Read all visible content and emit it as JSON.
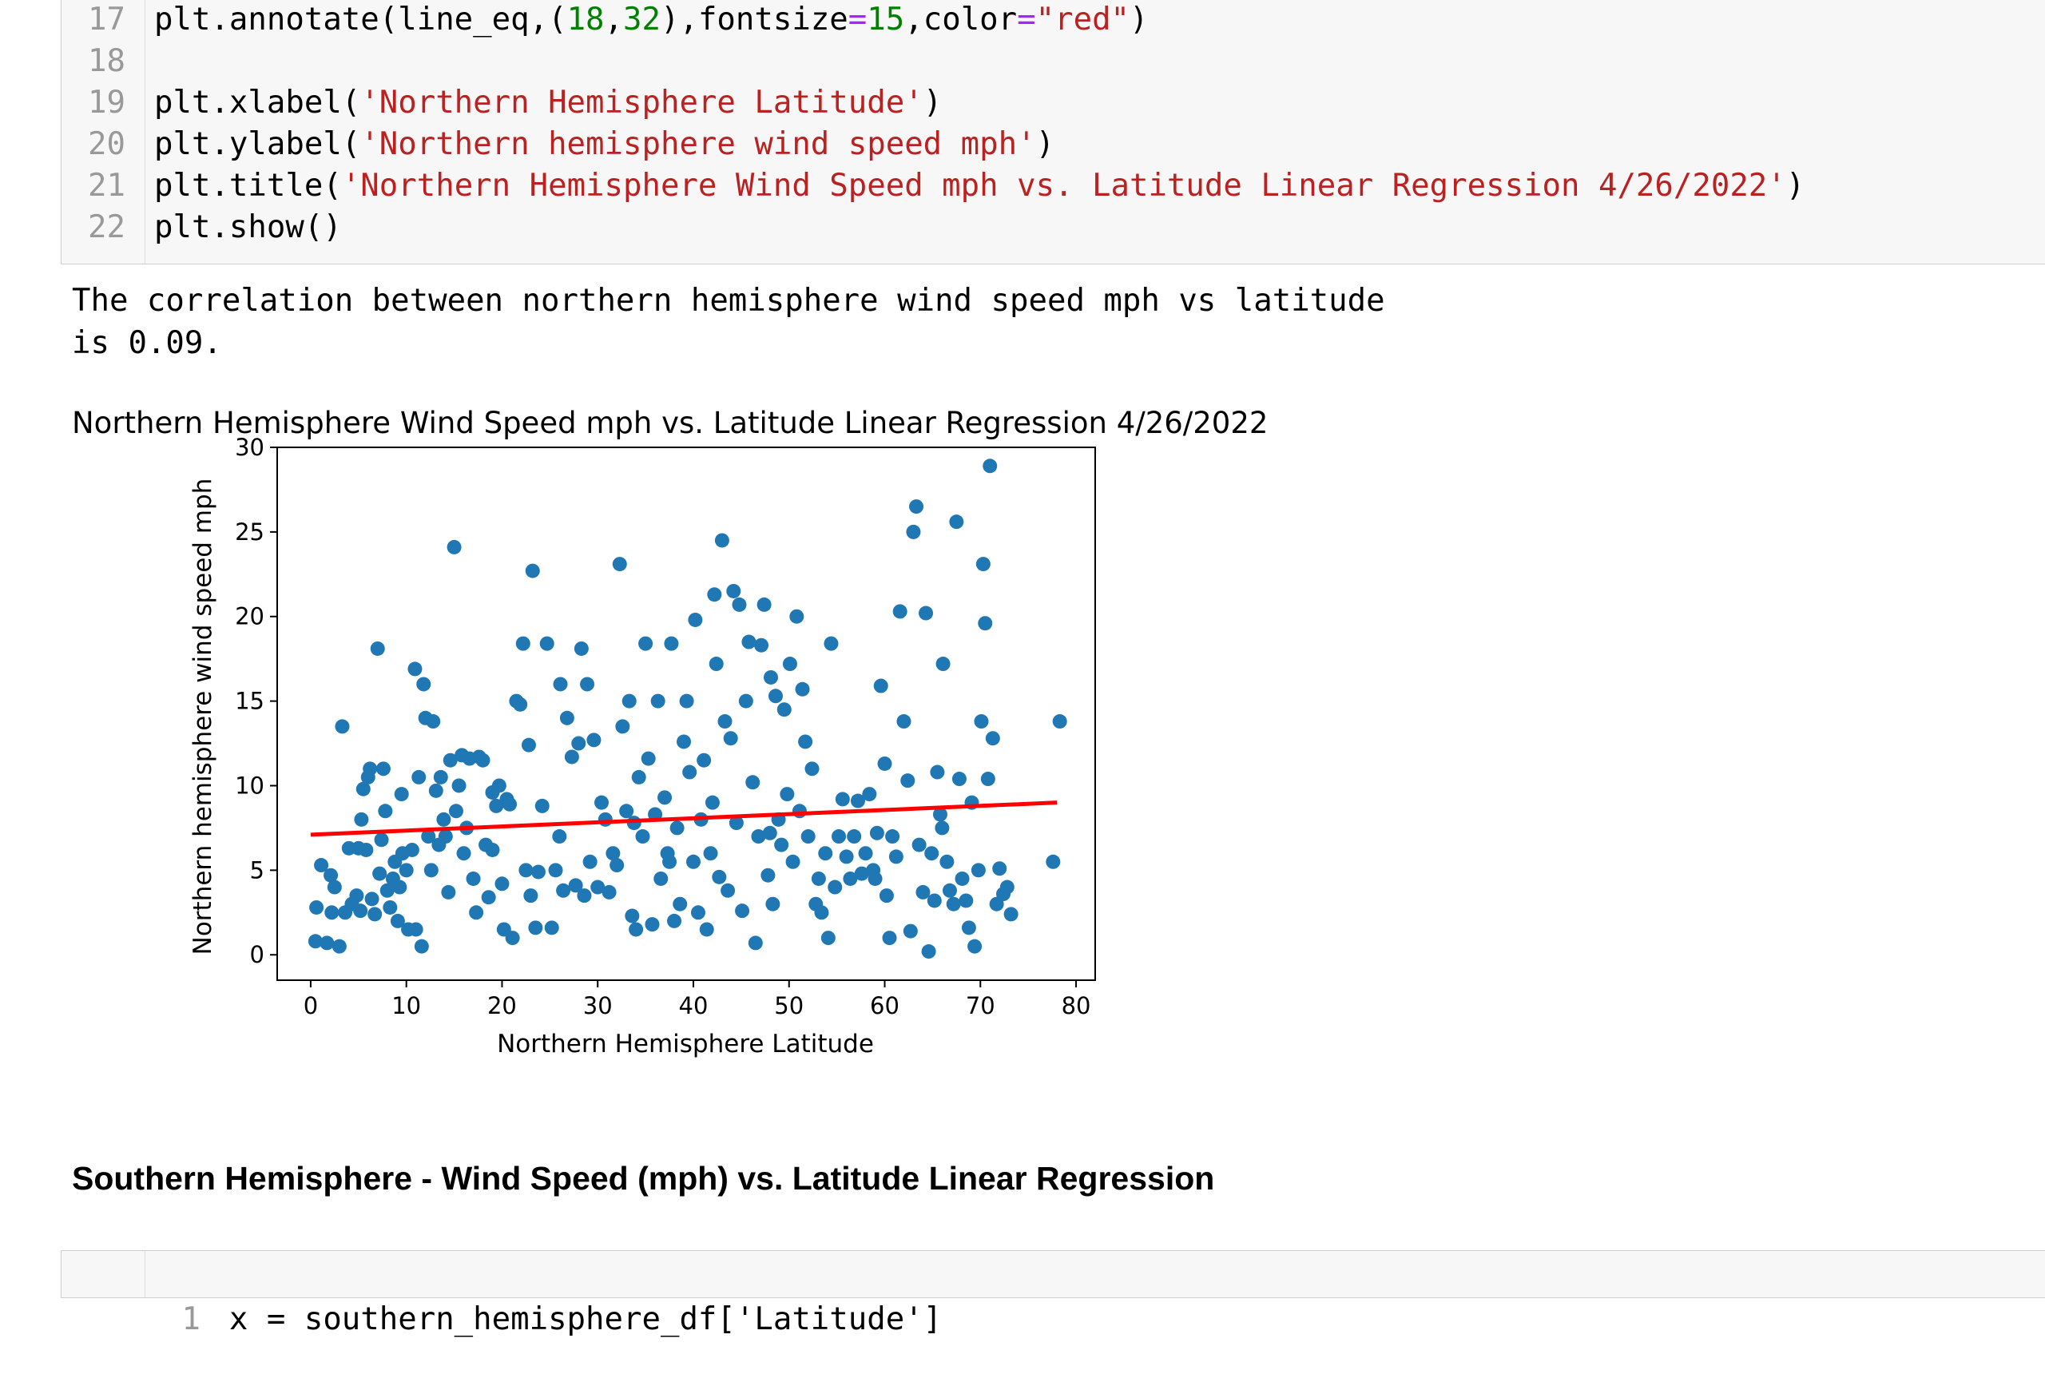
{
  "code_cell": {
    "lines": [
      {
        "num": "17",
        "parts": [
          {
            "t": "plt.annotate(line_eq,(",
            "c": "code"
          },
          {
            "t": "18",
            "c": "n"
          },
          {
            "t": ",",
            "c": "code"
          },
          {
            "t": "32",
            "c": "n"
          },
          {
            "t": "),fontsize",
            "c": "code"
          },
          {
            "t": "=",
            "c": "o"
          },
          {
            "t": "15",
            "c": "n"
          },
          {
            "t": ",color",
            "c": "code"
          },
          {
            "t": "=",
            "c": "o"
          },
          {
            "t": "\"red\"",
            "c": "s"
          },
          {
            "t": ")",
            "c": "code"
          }
        ]
      },
      {
        "num": "18",
        "parts": []
      },
      {
        "num": "19",
        "parts": [
          {
            "t": "plt.xlabel(",
            "c": "code"
          },
          {
            "t": "'Northern Hemisphere Latitude'",
            "c": "s"
          },
          {
            "t": ")",
            "c": "code"
          }
        ]
      },
      {
        "num": "20",
        "parts": [
          {
            "t": "plt.ylabel(",
            "c": "code"
          },
          {
            "t": "'Northern hemisphere wind speed mph'",
            "c": "s"
          },
          {
            "t": ")",
            "c": "code"
          }
        ]
      },
      {
        "num": "21",
        "parts": [
          {
            "t": "plt.title(",
            "c": "code"
          },
          {
            "t": "'Northern Hemisphere Wind Speed mph vs. Latitude Linear Regression 4/26/2022'",
            "c": "s"
          },
          {
            "t": ")",
            "c": "code"
          }
        ]
      },
      {
        "num": "22",
        "parts": [
          {
            "t": "plt.show()",
            "c": "code"
          }
        ]
      }
    ]
  },
  "output": {
    "text": "The correlation between northern hemisphere wind speed mph vs latitude\nis 0.09."
  },
  "markdown": {
    "heading": "Southern Hemisphere - Wind Speed (mph) vs. Latitude Linear Regression"
  },
  "next_cell": {
    "line_num": "1",
    "code": "x = southern_hemisphere_df['Latitude']"
  },
  "chart_data": {
    "type": "scatter",
    "title": "Northern Hemisphere Wind Speed mph vs. Latitude Linear Regression 4/26/2022",
    "xlabel": "Northern Hemisphere Latitude",
    "ylabel": "Northern hemisphere wind speed mph",
    "xlim": [
      -3.5,
      82
    ],
    "ylim": [
      -1.5,
      30
    ],
    "xticks": [
      0,
      10,
      20,
      30,
      40,
      50,
      60,
      70,
      80
    ],
    "yticks": [
      0,
      5,
      10,
      15,
      20,
      25,
      30
    ],
    "point_color": "#1f77b4",
    "line_color": "#ff0000",
    "regression": {
      "x": [
        0,
        78
      ],
      "y": [
        7.1,
        9.0
      ]
    },
    "points": [
      [
        0.5,
        0.8
      ],
      [
        0.6,
        2.8
      ],
      [
        1.1,
        5.3
      ],
      [
        1.7,
        0.7
      ],
      [
        2.1,
        4.7
      ],
      [
        2.5,
        4.0
      ],
      [
        3.0,
        0.5
      ],
      [
        3.3,
        13.5
      ],
      [
        3.6,
        2.5
      ],
      [
        4.0,
        6.3
      ],
      [
        4.3,
        3.0
      ],
      [
        4.8,
        3.5
      ],
      [
        5.2,
        2.6
      ],
      [
        5.3,
        8.0
      ],
      [
        5.5,
        9.8
      ],
      [
        5.8,
        6.2
      ],
      [
        6.0,
        10.5
      ],
      [
        6.2,
        11.0
      ],
      [
        6.4,
        3.3
      ],
      [
        6.7,
        2.4
      ],
      [
        7.0,
        18.1
      ],
      [
        7.2,
        4.8
      ],
      [
        7.4,
        6.8
      ],
      [
        7.6,
        11.0
      ],
      [
        7.8,
        8.5
      ],
      [
        8.0,
        3.8
      ],
      [
        8.3,
        2.8
      ],
      [
        8.6,
        4.5
      ],
      [
        8.8,
        5.5
      ],
      [
        9.1,
        2.0
      ],
      [
        9.3,
        4.0
      ],
      [
        9.6,
        6.0
      ],
      [
        10.0,
        5.0
      ],
      [
        10.2,
        1.5
      ],
      [
        10.6,
        6.2
      ],
      [
        10.9,
        16.9
      ],
      [
        11.0,
        1.5
      ],
      [
        11.3,
        10.5
      ],
      [
        11.6,
        0.5
      ],
      [
        11.8,
        16.0
      ],
      [
        12.0,
        14.0
      ],
      [
        12.3,
        7.0
      ],
      [
        12.6,
        5.0
      ],
      [
        12.8,
        13.8
      ],
      [
        13.1,
        9.7
      ],
      [
        13.4,
        6.5
      ],
      [
        13.6,
        10.5
      ],
      [
        13.9,
        8.0
      ],
      [
        14.1,
        7.0
      ],
      [
        14.4,
        3.7
      ],
      [
        14.6,
        11.5
      ],
      [
        15.0,
        24.1
      ],
      [
        15.2,
        8.5
      ],
      [
        15.5,
        10.0
      ],
      [
        15.8,
        11.8
      ],
      [
        16.0,
        6.0
      ],
      [
        16.3,
        7.5
      ],
      [
        16.6,
        11.6
      ],
      [
        17.0,
        4.5
      ],
      [
        17.3,
        2.5
      ],
      [
        17.6,
        11.7
      ],
      [
        18.0,
        11.5
      ],
      [
        18.3,
        6.5
      ],
      [
        18.6,
        3.4
      ],
      [
        19.0,
        9.6
      ],
      [
        19.4,
        8.8
      ],
      [
        19.7,
        10.0
      ],
      [
        20.0,
        4.2
      ],
      [
        20.2,
        1.5
      ],
      [
        20.5,
        9.2
      ],
      [
        20.8,
        8.9
      ],
      [
        21.1,
        1.0
      ],
      [
        21.5,
        15.0
      ],
      [
        21.9,
        14.8
      ],
      [
        22.2,
        18.4
      ],
      [
        22.5,
        5.0
      ],
      [
        22.8,
        12.4
      ],
      [
        23.0,
        3.5
      ],
      [
        23.2,
        22.7
      ],
      [
        23.5,
        1.6
      ],
      [
        23.8,
        4.9
      ],
      [
        24.2,
        8.8
      ],
      [
        24.7,
        18.4
      ],
      [
        25.2,
        1.6
      ],
      [
        25.6,
        5.0
      ],
      [
        26.1,
        16.0
      ],
      [
        26.4,
        3.8
      ],
      [
        26.8,
        14.0
      ],
      [
        27.3,
        11.7
      ],
      [
        27.7,
        4.1
      ],
      [
        28.0,
        12.5
      ],
      [
        28.3,
        18.1
      ],
      [
        28.6,
        3.5
      ],
      [
        28.9,
        16.0
      ],
      [
        29.2,
        5.5
      ],
      [
        29.6,
        12.7
      ],
      [
        30.0,
        4.0
      ],
      [
        30.4,
        9.0
      ],
      [
        30.8,
        8.0
      ],
      [
        31.2,
        3.7
      ],
      [
        31.6,
        6.0
      ],
      [
        32.0,
        5.3
      ],
      [
        32.3,
        23.1
      ],
      [
        32.6,
        13.5
      ],
      [
        33.0,
        8.5
      ],
      [
        33.3,
        15.0
      ],
      [
        33.6,
        2.3
      ],
      [
        34.0,
        1.5
      ],
      [
        34.3,
        10.5
      ],
      [
        34.7,
        7.0
      ],
      [
        35.0,
        18.4
      ],
      [
        35.3,
        11.6
      ],
      [
        35.7,
        1.8
      ],
      [
        36.0,
        8.3
      ],
      [
        36.3,
        15.0
      ],
      [
        36.6,
        4.5
      ],
      [
        37.0,
        9.3
      ],
      [
        37.3,
        6.0
      ],
      [
        37.7,
        18.4
      ],
      [
        38.0,
        2.0
      ],
      [
        38.3,
        7.5
      ],
      [
        38.6,
        3.0
      ],
      [
        39.0,
        12.6
      ],
      [
        39.3,
        15.0
      ],
      [
        39.6,
        10.8
      ],
      [
        40.0,
        5.5
      ],
      [
        40.2,
        19.8
      ],
      [
        40.5,
        2.5
      ],
      [
        40.8,
        8.0
      ],
      [
        41.1,
        11.5
      ],
      [
        41.4,
        1.5
      ],
      [
        41.8,
        6.0
      ],
      [
        42.2,
        21.3
      ],
      [
        42.4,
        17.2
      ],
      [
        42.7,
        4.6
      ],
      [
        43.0,
        24.5
      ],
      [
        43.3,
        13.8
      ],
      [
        43.6,
        3.8
      ],
      [
        43.9,
        12.8
      ],
      [
        44.2,
        21.5
      ],
      [
        44.5,
        7.8
      ],
      [
        44.8,
        20.7
      ],
      [
        45.1,
        2.6
      ],
      [
        45.5,
        15.0
      ],
      [
        45.8,
        18.5
      ],
      [
        46.2,
        10.2
      ],
      [
        46.5,
        0.7
      ],
      [
        46.8,
        7.0
      ],
      [
        47.1,
        18.3
      ],
      [
        47.4,
        20.7
      ],
      [
        47.8,
        4.7
      ],
      [
        48.1,
        16.4
      ],
      [
        48.3,
        3.0
      ],
      [
        48.6,
        15.3
      ],
      [
        48.9,
        8.0
      ],
      [
        49.2,
        6.5
      ],
      [
        49.5,
        14.5
      ],
      [
        49.8,
        9.5
      ],
      [
        50.1,
        17.2
      ],
      [
        50.4,
        5.5
      ],
      [
        50.8,
        20.0
      ],
      [
        51.1,
        8.5
      ],
      [
        51.4,
        15.7
      ],
      [
        51.7,
        12.6
      ],
      [
        52.0,
        7.0
      ],
      [
        52.4,
        11.0
      ],
      [
        52.8,
        3.0
      ],
      [
        53.1,
        4.5
      ],
      [
        53.4,
        2.5
      ],
      [
        53.8,
        6.0
      ],
      [
        54.1,
        1.0
      ],
      [
        54.4,
        18.4
      ],
      [
        54.8,
        4.0
      ],
      [
        55.2,
        7.0
      ],
      [
        55.6,
        9.2
      ],
      [
        56.0,
        5.8
      ],
      [
        56.4,
        4.5
      ],
      [
        56.8,
        7.0
      ],
      [
        57.2,
        9.1
      ],
      [
        57.6,
        4.8
      ],
      [
        58.0,
        6.0
      ],
      [
        58.4,
        9.5
      ],
      [
        58.8,
        5.0
      ],
      [
        59.2,
        7.2
      ],
      [
        59.6,
        15.9
      ],
      [
        60.0,
        11.3
      ],
      [
        60.2,
        3.5
      ],
      [
        60.5,
        1.0
      ],
      [
        60.8,
        7.0
      ],
      [
        61.2,
        5.8
      ],
      [
        61.6,
        20.3
      ],
      [
        62.0,
        13.8
      ],
      [
        62.4,
        10.3
      ],
      [
        62.7,
        1.4
      ],
      [
        63.0,
        25.0
      ],
      [
        63.3,
        26.5
      ],
      [
        63.6,
        6.5
      ],
      [
        64.0,
        3.7
      ],
      [
        64.3,
        20.2
      ],
      [
        64.6,
        0.2
      ],
      [
        64.9,
        6.0
      ],
      [
        65.2,
        3.2
      ],
      [
        65.5,
        10.8
      ],
      [
        65.8,
        8.3
      ],
      [
        66.1,
        17.2
      ],
      [
        66.5,
        5.5
      ],
      [
        66.8,
        3.8
      ],
      [
        67.2,
        3.0
      ],
      [
        67.5,
        25.6
      ],
      [
        67.8,
        10.4
      ],
      [
        68.1,
        4.5
      ],
      [
        68.5,
        3.2
      ],
      [
        68.8,
        1.6
      ],
      [
        69.1,
        9.0
      ],
      [
        69.4,
        0.5
      ],
      [
        69.8,
        5.0
      ],
      [
        70.1,
        13.8
      ],
      [
        70.3,
        23.1
      ],
      [
        70.5,
        19.6
      ],
      [
        70.8,
        10.4
      ],
      [
        71.0,
        28.9
      ],
      [
        71.3,
        12.8
      ],
      [
        71.7,
        3.0
      ],
      [
        72.0,
        5.1
      ],
      [
        72.4,
        3.6
      ],
      [
        72.8,
        4.0
      ],
      [
        73.2,
        2.4
      ],
      [
        77.6,
        5.5
      ],
      [
        78.3,
        13.8
      ],
      [
        66.0,
        7.5
      ],
      [
        59.0,
        4.5
      ],
      [
        48.0,
        7.2
      ],
      [
        42.0,
        9.0
      ],
      [
        37.5,
        5.5
      ],
      [
        33.8,
        7.8
      ],
      [
        26.0,
        7.0
      ],
      [
        19.0,
        6.2
      ],
      [
        9.5,
        9.5
      ],
      [
        5.0,
        6.3
      ],
      [
        2.2,
        2.5
      ]
    ]
  }
}
